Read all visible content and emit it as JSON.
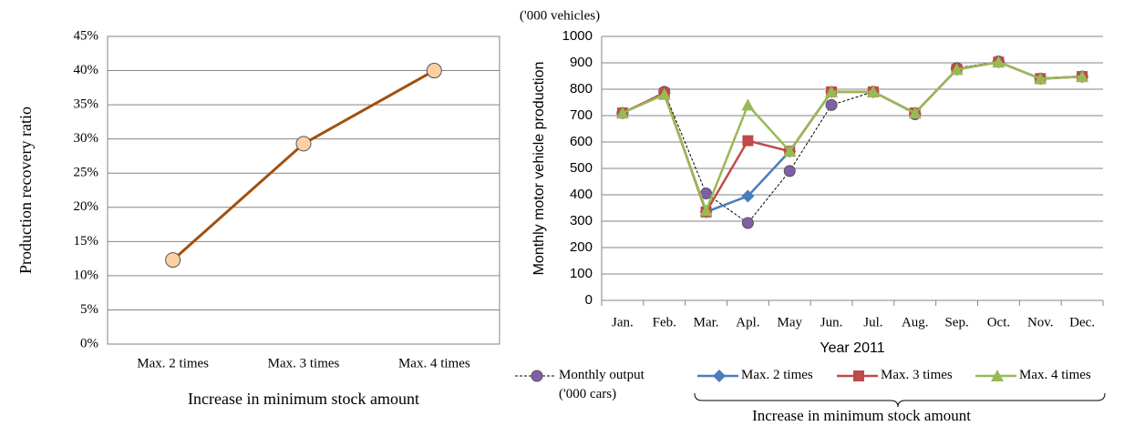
{
  "chart_data": [
    {
      "type": "line",
      "xlabel": "Increase in minimum stock amount",
      "ylabel": "Production recovery ratio",
      "categories": [
        "Max. 2 times",
        "Max. 3 times",
        "Max. 4 times"
      ],
      "series": [
        {
          "name": null,
          "color": "#a0500f",
          "marker_color": "#fdd0a2",
          "marker": "circle",
          "values": [
            12.3,
            29.3,
            40
          ]
        }
      ],
      "ylim": [
        0,
        45
      ],
      "yticks": [
        {
          "value": 0,
          "label": "0%"
        },
        {
          "value": 5,
          "label": "5%"
        },
        {
          "value": 10,
          "label": "10%"
        },
        {
          "value": 15,
          "label": "15%"
        },
        {
          "value": 20,
          "label": "20%"
        },
        {
          "value": 25,
          "label": "25%"
        },
        {
          "value": 30,
          "label": "30%"
        },
        {
          "value": 35,
          "label": "35%"
        },
        {
          "value": 40,
          "label": "40%"
        },
        {
          "value": 45,
          "label": "45%"
        }
      ],
      "grid": true
    },
    {
      "type": "line",
      "unit_label": "('000 vehicles)",
      "xlabel": "Year 2011",
      "ylabel": "Monthly motor vehicle production",
      "legend_note": "Increase in minimum stock amount",
      "categories": [
        "Jan.",
        "Feb.",
        "Mar.",
        "Apl.",
        "May",
        "Jun.",
        "Jul.",
        "Aug.",
        "Sep.",
        "Oct.",
        "Nov.",
        "Dec."
      ],
      "series": [
        {
          "name": "Monthly output ('000 cars)",
          "color": "#000000",
          "marker_color": "#7f5fa8",
          "marker": "circle",
          "dashed": true,
          "values": [
            710,
            790,
            405,
            293,
            490,
            740,
            790,
            705,
            880,
            905,
            840,
            848
          ]
        },
        {
          "name": "Max. 2 times",
          "color": "#4a7ebb",
          "marker_color": "#4a7ebb",
          "marker": "diamond",
          "values": [
            710,
            785,
            335,
            395,
            565,
            790,
            790,
            710,
            875,
            903,
            840,
            848
          ]
        },
        {
          "name": "Max. 3 times",
          "color": "#be4b48",
          "marker_color": "#be4b48",
          "marker": "square",
          "values": [
            710,
            785,
            335,
            605,
            565,
            790,
            790,
            710,
            875,
            903,
            840,
            848
          ]
        },
        {
          "name": "Max. 4 times",
          "color": "#98b954",
          "marker_color": "#98b954",
          "marker": "triangle",
          "values": [
            710,
            780,
            340,
            740,
            565,
            790,
            790,
            710,
            875,
            903,
            840,
            848
          ]
        }
      ],
      "ylim": [
        0,
        1000
      ],
      "yticks": [
        0,
        100,
        200,
        300,
        400,
        500,
        600,
        700,
        800,
        900,
        1000
      ],
      "grid": true
    }
  ]
}
